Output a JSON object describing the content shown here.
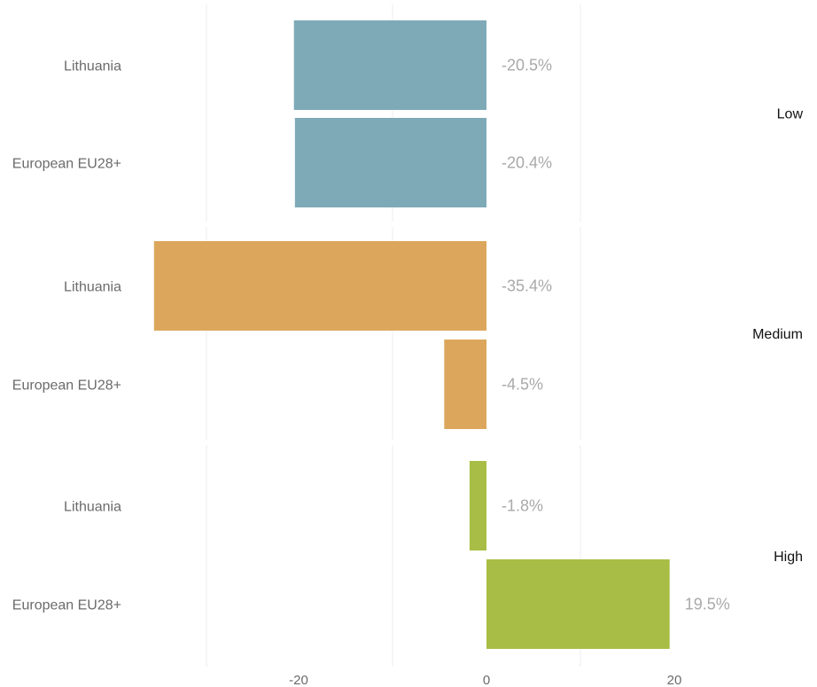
{
  "chart_data": {
    "type": "bar",
    "orientation": "horizontal",
    "xlim": [
      -36,
      20
    ],
    "x_ticks": [
      -20,
      0,
      20
    ],
    "tick_labels": [
      "-20",
      "0",
      "20"
    ],
    "grid": true,
    "groups": [
      {
        "name": "Low",
        "color": "#7eaab8",
        "bars": [
          {
            "category": "Lithuania",
            "value": -20.5,
            "label": "-20.5%"
          },
          {
            "category": "European EU28+",
            "value": -20.4,
            "label": "-20.4%"
          }
        ]
      },
      {
        "name": "Medium",
        "color": "#dca75c",
        "bars": [
          {
            "category": "Lithuania",
            "value": -35.4,
            "label": "-35.4%"
          },
          {
            "category": "European EU28+",
            "value": -4.5,
            "label": "-4.5%"
          }
        ]
      },
      {
        "name": "High",
        "color": "#a8bd45",
        "bars": [
          {
            "category": "Lithuania",
            "value": -1.8,
            "label": "-1.8%"
          },
          {
            "category": "European EU28+",
            "value": 19.5,
            "label": "19.5%"
          }
        ]
      }
    ]
  }
}
